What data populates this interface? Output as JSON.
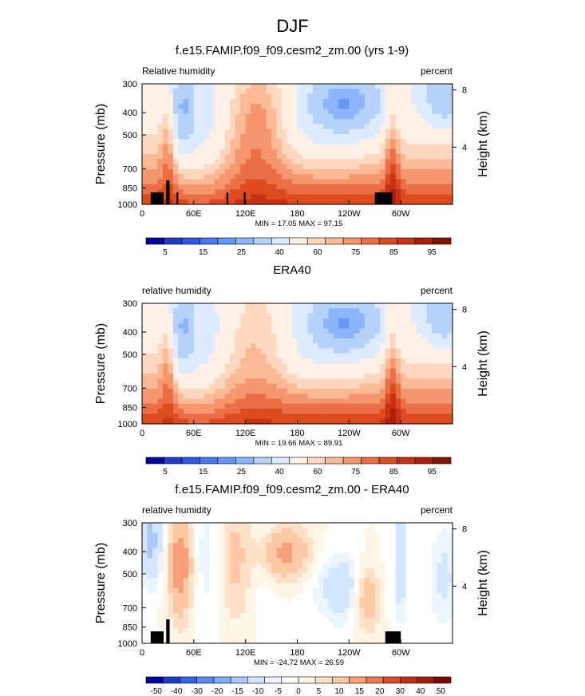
{
  "page_title": "DJF",
  "palette": {
    "abs": [
      "#0000a0",
      "#1e3cc8",
      "#2d5ae6",
      "#4678f0",
      "#6496f5",
      "#8cb4fa",
      "#b4d2fa",
      "#dcebff",
      "#fff0e6",
      "#ffd7be",
      "#fcb996",
      "#f5966e",
      "#eb6e46",
      "#dc4b1e",
      "#c83214",
      "#aa1e0a",
      "#821405"
    ],
    "diff": [
      "#0000a0",
      "#1e3cc8",
      "#3264e6",
      "#5a8cf0",
      "#82aaf5",
      "#aac8fa",
      "#d2e6ff",
      "#ebf5ff",
      "#ffffff",
      "#fff5e6",
      "#ffe1c8",
      "#fcc8a5",
      "#f5a078",
      "#eb7850",
      "#dc4b28",
      "#c32d14",
      "#a01e0a",
      "#7d0a05"
    ]
  },
  "chart_data": [
    {
      "type": "heatmap",
      "title": "f.e15.FAMIP.f09_f09.cesm2_zm.00 (yrs 1-9)",
      "left_label": "Relative humidity",
      "right_label": "percent",
      "ylabel": "Pressure (mb)",
      "y2label": "Height (km)",
      "x_ticks": [
        "0",
        "60E",
        "120E",
        "180",
        "120W",
        "60W"
      ],
      "y_ticks": [
        "300",
        "400",
        "500",
        "700",
        "850",
        "1000"
      ],
      "y2_ticks": [
        "8",
        "4"
      ],
      "stats": "MIN =  17.05  MAX =  97.15",
      "colorbar_labels": [
        "5",
        "15",
        "25",
        "40",
        "60",
        "75",
        "85",
        "95"
      ],
      "value_min": 17.05,
      "value_max": 97.15,
      "terrain": [
        [
          10,
          25
        ],
        [
          28,
          32
        ],
        [
          40,
          42
        ],
        [
          98,
          100
        ],
        [
          118,
          120
        ],
        [
          270,
          290
        ]
      ]
    },
    {
      "type": "heatmap",
      "title": "ERA40",
      "left_label": "relative humidity",
      "right_label": "percent",
      "ylabel": "Pressure (mb)",
      "y2label": "Height (km)",
      "x_ticks": [
        "0",
        "60E",
        "120E",
        "180",
        "120W",
        "60W"
      ],
      "y_ticks": [
        "300",
        "400",
        "500",
        "700",
        "850",
        "1000"
      ],
      "y2_ticks": [
        "8",
        "4"
      ],
      "stats": "MIN =  19.66  MAX =  89.91",
      "colorbar_labels": [
        "5",
        "15",
        "25",
        "40",
        "60",
        "75",
        "85",
        "95"
      ],
      "value_min": 19.66,
      "value_max": 89.91,
      "terrain": []
    },
    {
      "type": "heatmap",
      "title": "f.e15.FAMIP.f09_f09.cesm2_zm.00 - ERA40",
      "left_label": "relative humidity",
      "right_label": "percent",
      "ylabel": "Pressure (mb)",
      "y2label": "Height (km)",
      "x_ticks": [
        "0",
        "60E",
        "120E",
        "180",
        "120W",
        "60W"
      ],
      "y_ticks": [
        "300",
        "400",
        "500",
        "700",
        "850",
        "1000"
      ],
      "y2_ticks": [
        "8",
        "4"
      ],
      "stats": "MIN = -24.72  MAX =  26.59",
      "colorbar_labels": [
        "-50",
        "-40",
        "-30",
        "-20",
        "-15",
        "-10",
        "-5",
        "0",
        "5",
        "10",
        "15",
        "20",
        "30",
        "40",
        "50"
      ],
      "value_min": -24.72,
      "value_max": 26.59,
      "terrain": [
        [
          10,
          25
        ],
        [
          28,
          32
        ],
        [
          282,
          300
        ]
      ]
    }
  ]
}
